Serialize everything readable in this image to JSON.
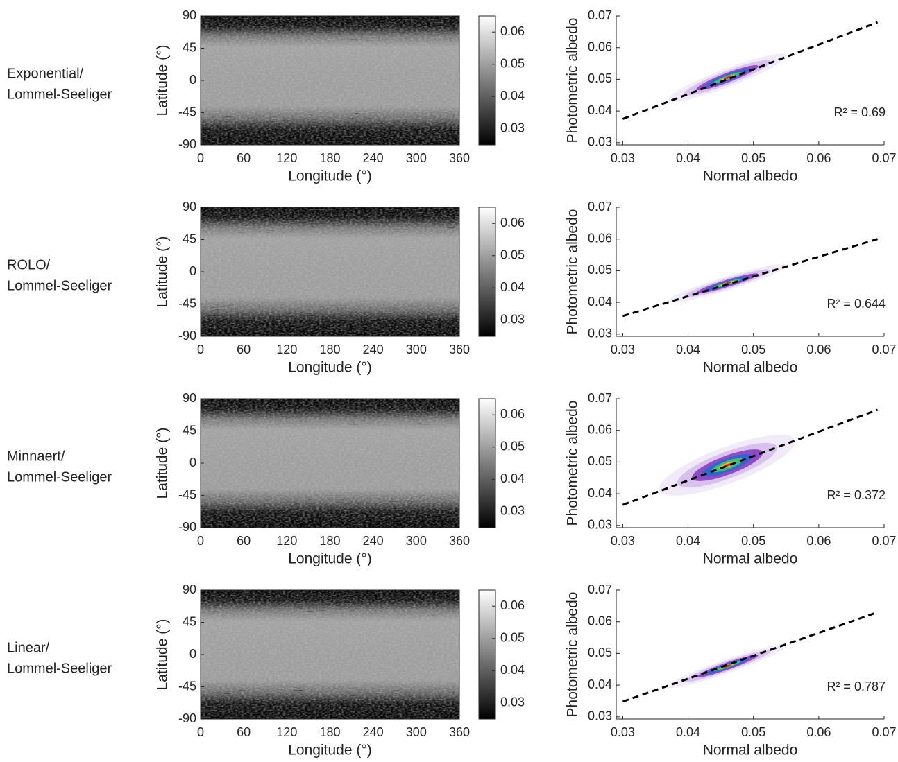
{
  "chart_data": [
    {
      "type": "map",
      "row_label": [
        "Exponential/",
        "Lommel-Seeliger"
      ],
      "xlabel": "Longitude (°)",
      "ylabel": "Latitude (°)",
      "xlim": [
        0,
        360
      ],
      "xticks": [
        0,
        60,
        120,
        180,
        240,
        300,
        360
      ],
      "ylim": [
        -90,
        90
      ],
      "yticks": [
        -90,
        -45,
        0,
        45,
        90
      ],
      "clim": [
        0.025,
        0.065
      ],
      "cticks": [
        0.03,
        0.04,
        0.05,
        0.06
      ]
    },
    {
      "type": "density-scatter",
      "xlabel": "Normal albedo",
      "ylabel": "Photometric albedo",
      "xlim": [
        0.029,
        0.07
      ],
      "xticks": [
        0.03,
        0.04,
        0.05,
        0.06,
        0.07
      ],
      "ylim": [
        0.0293,
        0.07
      ],
      "yticks": [
        0.03,
        0.04,
        0.05,
        0.06,
        0.07
      ],
      "fit_line": {
        "x": [
          0.03,
          0.069
        ],
        "y": [
          0.0375,
          0.068
        ]
      },
      "peak": {
        "x": 0.046,
        "y": 0.0505
      },
      "spread": {
        "x": 0.0035,
        "y": 0.002
      },
      "annotation": "R² = 0.69"
    },
    {
      "type": "map",
      "row_label": [
        "ROLO/",
        "Lommel-Seeliger"
      ],
      "xlabel": "Longitude (°)",
      "ylabel": "Latitude (°)",
      "xlim": [
        0,
        360
      ],
      "xticks": [
        0,
        60,
        120,
        180,
        240,
        300,
        360
      ],
      "ylim": [
        -90,
        90
      ],
      "yticks": [
        -90,
        -45,
        0,
        45,
        90
      ],
      "clim": [
        0.025,
        0.065
      ],
      "cticks": [
        0.03,
        0.04,
        0.05,
        0.06
      ]
    },
    {
      "type": "density-scatter",
      "xlabel": "Normal albedo",
      "ylabel": "Photometric albedo",
      "xlim": [
        0.029,
        0.07
      ],
      "xticks": [
        0.03,
        0.04,
        0.05,
        0.06,
        0.07
      ],
      "ylim": [
        0.0293,
        0.07
      ],
      "yticks": [
        0.03,
        0.04,
        0.05,
        0.06,
        0.07
      ],
      "fit_line": {
        "x": [
          0.03,
          0.069
        ],
        "y": [
          0.0357,
          0.06
        ]
      },
      "peak": {
        "x": 0.046,
        "y": 0.046
      },
      "spread": {
        "x": 0.0035,
        "y": 0.0015
      },
      "annotation": "R² = 0.644"
    },
    {
      "type": "map",
      "row_label": [
        "Minnaert/",
        "Lommel-Seeliger"
      ],
      "xlabel": "Longitude (°)",
      "ylabel": "Latitude (°)",
      "xlim": [
        0,
        360
      ],
      "xticks": [
        0,
        60,
        120,
        180,
        240,
        300,
        360
      ],
      "ylim": [
        -90,
        90
      ],
      "yticks": [
        -90,
        -45,
        0,
        45,
        90
      ],
      "clim": [
        0.025,
        0.065
      ],
      "cticks": [
        0.03,
        0.04,
        0.05,
        0.06
      ]
    },
    {
      "type": "density-scatter",
      "xlabel": "Normal albedo",
      "ylabel": "Photometric albedo",
      "xlim": [
        0.029,
        0.07
      ],
      "xticks": [
        0.03,
        0.04,
        0.05,
        0.06,
        0.07
      ],
      "ylim": [
        0.0293,
        0.07
      ],
      "yticks": [
        0.03,
        0.04,
        0.05,
        0.06,
        0.07
      ],
      "fit_line": {
        "x": [
          0.03,
          0.069
        ],
        "y": [
          0.0365,
          0.0665
        ]
      },
      "peak": {
        "x": 0.046,
        "y": 0.049
      },
      "spread": {
        "x": 0.004,
        "y": 0.004
      },
      "annotation": "R² = 0.372"
    },
    {
      "type": "map",
      "row_label": [
        "Linear/",
        "Lommel-Seeliger"
      ],
      "xlabel": "Longitude (°)",
      "ylabel": "Latitude (°)",
      "xlim": [
        0,
        360
      ],
      "xticks": [
        0,
        60,
        120,
        180,
        240,
        300,
        360
      ],
      "ylim": [
        -90,
        90
      ],
      "yticks": [
        -90,
        -45,
        0,
        45,
        90
      ],
      "clim": [
        0.025,
        0.065
      ],
      "cticks": [
        0.03,
        0.04,
        0.05,
        0.06
      ]
    },
    {
      "type": "density-scatter",
      "xlabel": "Normal albedo",
      "ylabel": "Photometric albedo",
      "xlim": [
        0.029,
        0.07
      ],
      "xticks": [
        0.03,
        0.04,
        0.05,
        0.06,
        0.07
      ],
      "ylim": [
        0.0293,
        0.07
      ],
      "yticks": [
        0.03,
        0.04,
        0.05,
        0.06,
        0.07
      ],
      "fit_line": {
        "x": [
          0.03,
          0.069
        ],
        "y": [
          0.0348,
          0.063
        ]
      },
      "peak": {
        "x": 0.046,
        "y": 0.046
      },
      "spread": {
        "x": 0.0035,
        "y": 0.0015
      },
      "annotation": "R² = 0.787"
    }
  ]
}
